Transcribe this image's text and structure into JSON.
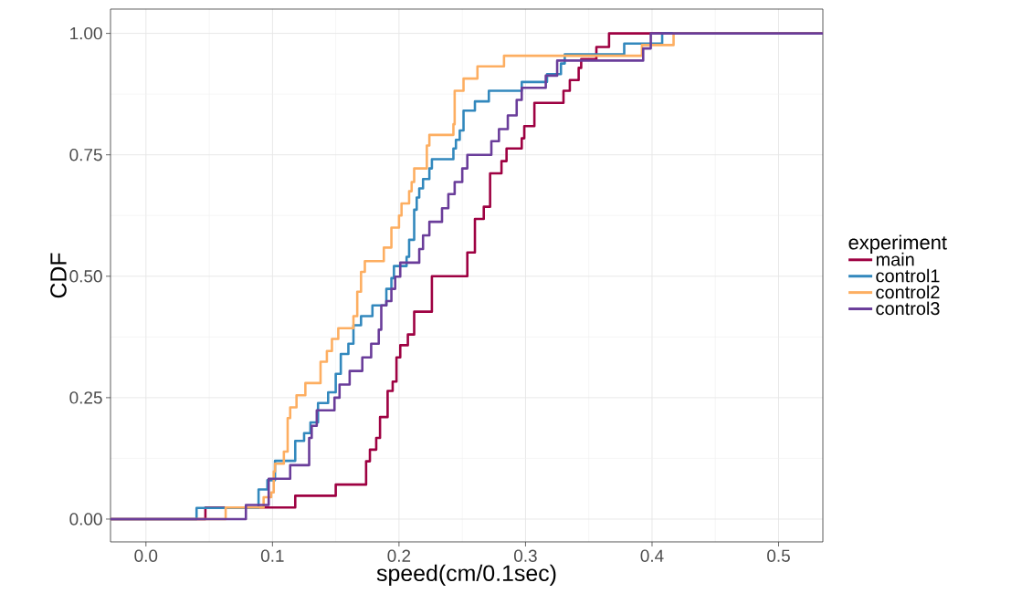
{
  "chart_data": {
    "type": "step",
    "xlabel": "speed(cm/0.1sec)",
    "ylabel": "CDF",
    "legend_title": "experiment",
    "legend": "right",
    "grid": true,
    "xlim": [
      -0.028,
      0.535
    ],
    "ylim": [
      -0.047,
      1.05
    ],
    "xticks": [
      {
        "value": 0,
        "label": "0.0"
      },
      {
        "value": 0.1,
        "label": "0.1"
      },
      {
        "value": 0.2,
        "label": "0.2"
      },
      {
        "value": 0.3,
        "label": "0.3"
      },
      {
        "value": 0.4,
        "label": "0.4"
      },
      {
        "value": 0.5,
        "label": "0.5"
      }
    ],
    "yticks": [
      {
        "value": 0,
        "label": "0.00"
      },
      {
        "value": 0.25,
        "label": "0.25"
      },
      {
        "value": 0.5,
        "label": "0.50"
      },
      {
        "value": 0.75,
        "label": "0.75"
      },
      {
        "value": 1,
        "label": "1.00"
      }
    ],
    "series": [
      {
        "name": "main",
        "color": "#9e0142",
        "x": [
          -0.028,
          0.047,
          0.118,
          0.15,
          0.174,
          0.177,
          0.182,
          0.185,
          0.191,
          0.195,
          0.198,
          0.201,
          0.207,
          0.212,
          0.226,
          0.254,
          0.26,
          0.267,
          0.272,
          0.281,
          0.285,
          0.297,
          0.299,
          0.307,
          0.33,
          0.335,
          0.342,
          0.344,
          0.356,
          0.366,
          0.535
        ],
        "values": [
          0,
          0.024,
          0.048,
          0.071,
          0.119,
          0.143,
          0.167,
          0.21,
          0.264,
          0.283,
          0.333,
          0.358,
          0.38,
          0.427,
          0.5,
          0.549,
          0.618,
          0.643,
          0.712,
          0.737,
          0.763,
          0.784,
          0.809,
          0.857,
          0.882,
          0.904,
          0.929,
          0.947,
          0.972,
          1,
          1
        ]
      },
      {
        "name": "control1",
        "color": "#3288bd",
        "x": [
          -0.028,
          0.04,
          0.089,
          0.096,
          0.102,
          0.118,
          0.125,
          0.13,
          0.136,
          0.144,
          0.15,
          0.154,
          0.16,
          0.164,
          0.17,
          0.179,
          0.19,
          0.194,
          0.196,
          0.206,
          0.208,
          0.212,
          0.214,
          0.216,
          0.219,
          0.224,
          0.226,
          0.243,
          0.245,
          0.248,
          0.251,
          0.26,
          0.271,
          0.297,
          0.317,
          0.328,
          0.331,
          0.378,
          0.408,
          0.535
        ],
        "values": [
          0,
          0.023,
          0.061,
          0.08,
          0.12,
          0.161,
          0.177,
          0.199,
          0.239,
          0.261,
          0.299,
          0.34,
          0.361,
          0.399,
          0.418,
          0.44,
          0.474,
          0.496,
          0.521,
          0.54,
          0.575,
          0.637,
          0.662,
          0.681,
          0.7,
          0.722,
          0.741,
          0.763,
          0.781,
          0.8,
          0.841,
          0.86,
          0.882,
          0.9,
          0.916,
          0.938,
          0.957,
          0.979,
          1,
          1
        ]
      },
      {
        "name": "control2",
        "color": "#fdae61",
        "x": [
          -0.028,
          0.063,
          0.093,
          0.099,
          0.101,
          0.102,
          0.109,
          0.112,
          0.114,
          0.119,
          0.126,
          0.138,
          0.143,
          0.147,
          0.152,
          0.164,
          0.167,
          0.17,
          0.173,
          0.188,
          0.194,
          0.2,
          0.202,
          0.208,
          0.21,
          0.212,
          0.222,
          0.224,
          0.243,
          0.244,
          0.251,
          0.262,
          0.283,
          0.392,
          0.417,
          0.535
        ],
        "values": [
          0,
          0.024,
          0.045,
          0.055,
          0.098,
          0.114,
          0.139,
          0.208,
          0.23,
          0.255,
          0.28,
          0.324,
          0.346,
          0.371,
          0.393,
          0.418,
          0.468,
          0.509,
          0.531,
          0.559,
          0.6,
          0.625,
          0.65,
          0.675,
          0.694,
          0.722,
          0.769,
          0.791,
          0.813,
          0.882,
          0.907,
          0.932,
          0.954,
          0.976,
          1,
          1
        ]
      },
      {
        "name": "control3",
        "color": "#6a3d9a",
        "x": [
          -0.028,
          0.079,
          0.097,
          0.114,
          0.129,
          0.131,
          0.135,
          0.149,
          0.153,
          0.161,
          0.171,
          0.178,
          0.184,
          0.186,
          0.19,
          0.194,
          0.197,
          0.201,
          0.216,
          0.219,
          0.224,
          0.234,
          0.239,
          0.244,
          0.25,
          0.254,
          0.273,
          0.279,
          0.286,
          0.293,
          0.297,
          0.316,
          0.325,
          0.393,
          0.399,
          0.535
        ],
        "values": [
          0,
          0.029,
          0.083,
          0.111,
          0.167,
          0.192,
          0.224,
          0.25,
          0.277,
          0.305,
          0.333,
          0.361,
          0.39,
          0.44,
          0.449,
          0.474,
          0.499,
          0.528,
          0.556,
          0.584,
          0.612,
          0.64,
          0.669,
          0.694,
          0.722,
          0.75,
          0.778,
          0.803,
          0.831,
          0.863,
          0.888,
          0.913,
          0.944,
          0.969,
          1,
          1
        ]
      }
    ]
  }
}
